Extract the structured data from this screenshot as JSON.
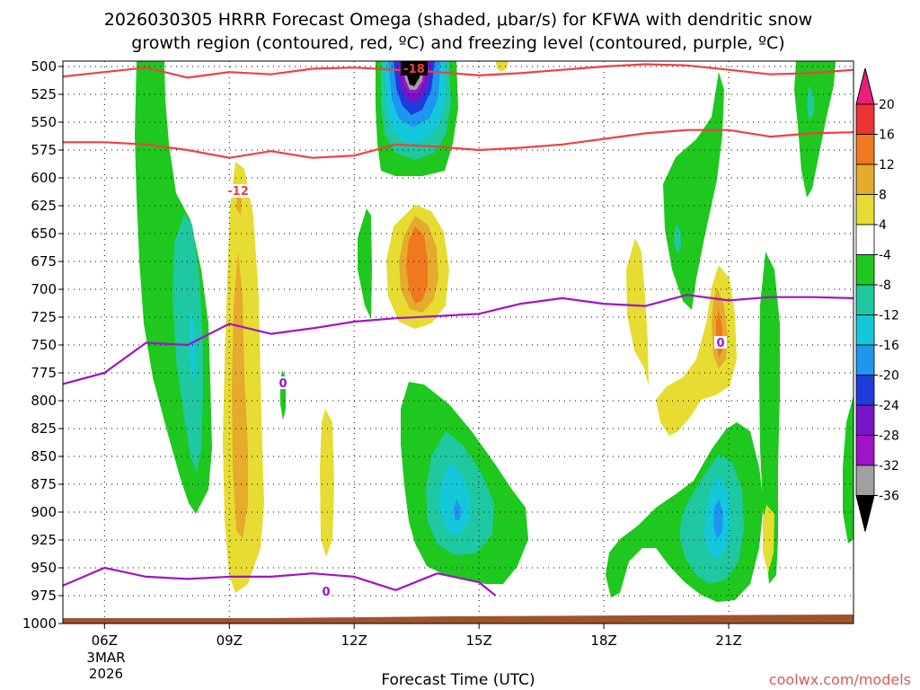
{
  "chart_data": {
    "type": "heatmap",
    "title_line1": "2026030305 HRRR Forecast Omega (shaded, μbar/s) for KFWA with dendritic snow",
    "title_line2": "growth region (contoured, red, ºC) and freezing level (contoured, purple, ºC)",
    "xlabel": "Forecast Time (UTC)",
    "ylabel": "",
    "x_ticks": [
      "06Z",
      "09Z",
      "12Z",
      "15Z",
      "18Z",
      "21Z"
    ],
    "x_tick_hours": [
      6,
      9,
      12,
      15,
      18,
      21
    ],
    "x_range_hours": [
      5,
      24
    ],
    "date_label_day": "3MAR",
    "date_label_year": "2026",
    "y_ticks": [
      500,
      525,
      550,
      575,
      600,
      625,
      650,
      675,
      700,
      725,
      750,
      775,
      800,
      825,
      850,
      875,
      900,
      925,
      950,
      975,
      1000
    ],
    "y_range_hpa": [
      500,
      1000
    ],
    "colorbar_levels": [
      -36,
      -32,
      -28,
      -24,
      -20,
      -16,
      -12,
      -8,
      -4,
      4,
      8,
      12,
      16,
      20
    ],
    "colorbar_labels": [
      "20",
      "16",
      "12",
      "8",
      "4",
      "-4",
      "-8",
      "-12",
      "-16",
      "-20",
      "-24",
      "-28",
      "-32",
      "-36"
    ],
    "colorbar_colors_top_to_bottom": [
      "#ec1e7a",
      "#ee3232",
      "#f0781e",
      "#e6aa2c",
      "#e6dc32",
      "#ffffff",
      "#1ec81e",
      "#1ec8a0",
      "#14c8dc",
      "#1e96f0",
      "#1e3cdc",
      "#7814c8",
      "#a014c8",
      "#a0a0a0",
      "#000000"
    ],
    "contour_labels": {
      "dgz_minus18": "-18",
      "dgz_minus12": "-12",
      "freezing_0_a": "0",
      "freezing_0_b": "0",
      "freezing_0_c": "0"
    },
    "contour_lines": {
      "dgz_top_minus18": {
        "color": "#f04040",
        "hours": [
          5.0,
          6.0,
          7.0,
          8.0,
          9.0,
          10.0,
          11.0,
          12.0,
          13.0,
          14.0,
          15.0,
          16.0,
          17.0,
          18.0,
          19.0,
          20.0,
          21.0,
          22.0,
          23.0,
          24.0
        ],
        "hpa": [
          509,
          505,
          501,
          510,
          505,
          507,
          502,
          501,
          503,
          505,
          508,
          506,
          503,
          500,
          498,
          499,
          503,
          507,
          506,
          503
        ]
      },
      "dgz_bottom_minus12": {
        "color": "#f04040",
        "hours": [
          5.0,
          6.0,
          7.0,
          8.0,
          9.0,
          10.0,
          11.0,
          12.0,
          13.0,
          14.0,
          15.0,
          16.0,
          17.0,
          18.0,
          19.0,
          20.0,
          21.0,
          22.0,
          23.0,
          24.0
        ],
        "hpa": [
          568,
          568,
          570,
          575,
          582,
          576,
          582,
          580,
          570,
          572,
          575,
          573,
          570,
          565,
          560,
          557,
          557,
          563,
          560,
          559
        ]
      },
      "freezing_level_upper": {
        "color": "#a014c8",
        "hours": [
          5.0,
          6.0,
          7.0,
          8.0,
          9.0,
          10.0,
          11.0,
          12.0,
          13.0,
          14.0,
          15.0,
          16.0,
          17.0,
          18.0,
          19.0,
          20.0,
          21.0,
          22.0,
          23.0,
          24.0
        ],
        "hpa": [
          785,
          775,
          748,
          750,
          731,
          740,
          735,
          729,
          726,
          724,
          722,
          713,
          708,
          713,
          715,
          705,
          710,
          707,
          707,
          708
        ]
      },
      "freezing_level_lower": {
        "color": "#a014c8",
        "hours": [
          5.0,
          6.0,
          7.0,
          8.0,
          9.0,
          10.0,
          11.0,
          12.0,
          13.0,
          14.0,
          15.0,
          15.4
        ],
        "hpa": [
          966,
          950,
          958,
          960,
          958,
          958,
          955,
          958,
          970,
          955,
          963,
          975
        ]
      }
    },
    "omega_regions": [
      {
        "hour": 7.9,
        "hpa": 700,
        "sign": "negative",
        "min_value": -12
      },
      {
        "hour": 9.0,
        "hpa": 790,
        "sign": "positive",
        "max_value": 8
      },
      {
        "hour": 13.0,
        "hpa": 515,
        "sign": "negative",
        "min_value": -36
      },
      {
        "hour": 13.0,
        "hpa": 645,
        "sign": "positive",
        "max_value": 12
      },
      {
        "hour": 14.0,
        "hpa": 860,
        "sign": "negative",
        "min_value": -20
      },
      {
        "hour": 19.9,
        "hpa": 870,
        "sign": "negative",
        "min_value": -20
      },
      {
        "hour": 19.9,
        "hpa": 700,
        "sign": "positive",
        "max_value": 12
      }
    ]
  },
  "footer": {
    "watermark": "coolwx.com/models"
  }
}
